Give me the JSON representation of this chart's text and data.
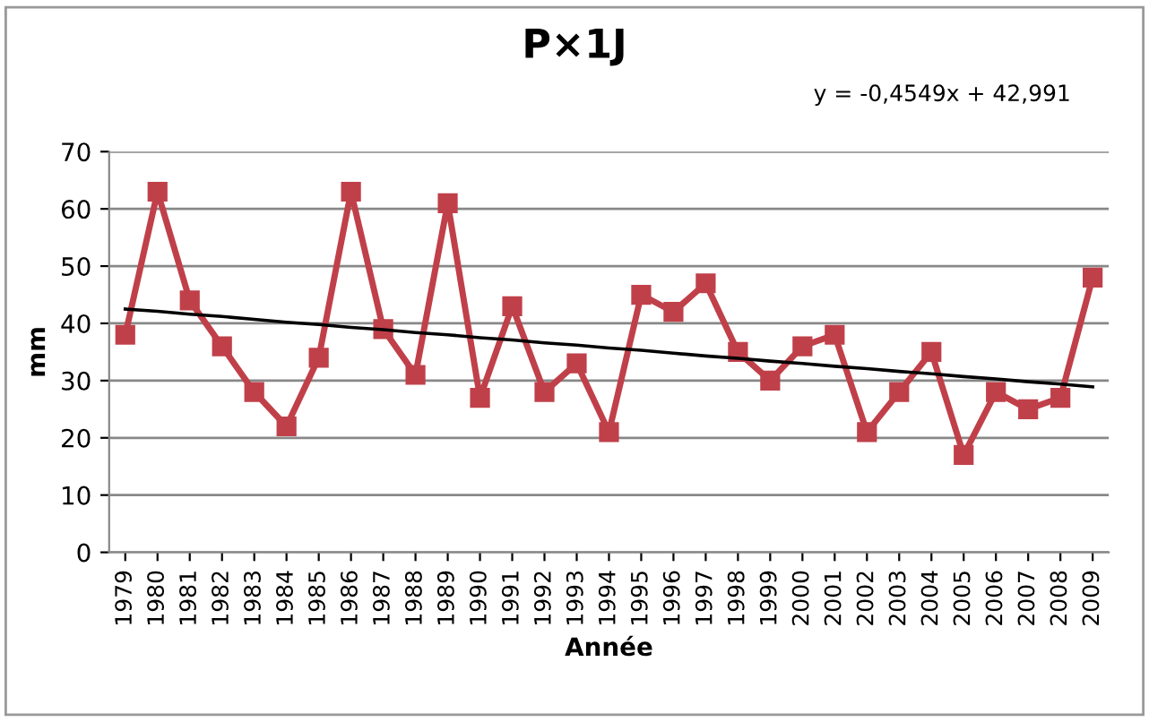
{
  "chart_data": {
    "type": "line",
    "title": "P×1J",
    "xlabel": "Année",
    "ylabel": "mm",
    "categories": [
      "1979",
      "1980",
      "1981",
      "1982",
      "1983",
      "1984",
      "1985",
      "1986",
      "1987",
      "1988",
      "1989",
      "1990",
      "1991",
      "1992",
      "1993",
      "1994",
      "1995",
      "1996",
      "1997",
      "1998",
      "1999",
      "2000",
      "2001",
      "2002",
      "2003",
      "2004",
      "2005",
      "2006",
      "2007",
      "2008",
      "2009"
    ],
    "series": [
      {
        "color": "#c0404a",
        "marker": "square",
        "values": [
          38,
          63,
          44,
          36,
          28,
          22,
          34,
          63,
          39,
          31,
          61,
          27,
          43,
          28,
          33,
          21,
          45,
          42,
          47,
          35,
          30,
          36,
          38,
          21,
          28,
          35,
          17,
          28,
          25,
          27,
          48
        ]
      },
      {
        "color": "#000000",
        "marker": "none",
        "values": [
          42.5,
          42.1,
          41.6,
          41.2,
          40.7,
          40.2,
          39.8,
          39.3,
          38.9,
          38.4,
          38.0,
          37.5,
          37.1,
          36.6,
          36.2,
          35.7,
          35.3,
          34.8,
          34.3,
          33.9,
          33.4,
          33.0,
          32.5,
          32.1,
          31.6,
          31.2,
          30.7,
          30.3,
          29.8,
          29.4,
          28.9
        ]
      }
    ],
    "annotations": [
      "y = -0,4549x + 42,991"
    ],
    "ylim": [
      0,
      70
    ],
    "yticks": [
      0,
      10,
      20,
      30,
      40,
      50,
      60,
      70
    ],
    "grid": "y",
    "legend": false
  }
}
